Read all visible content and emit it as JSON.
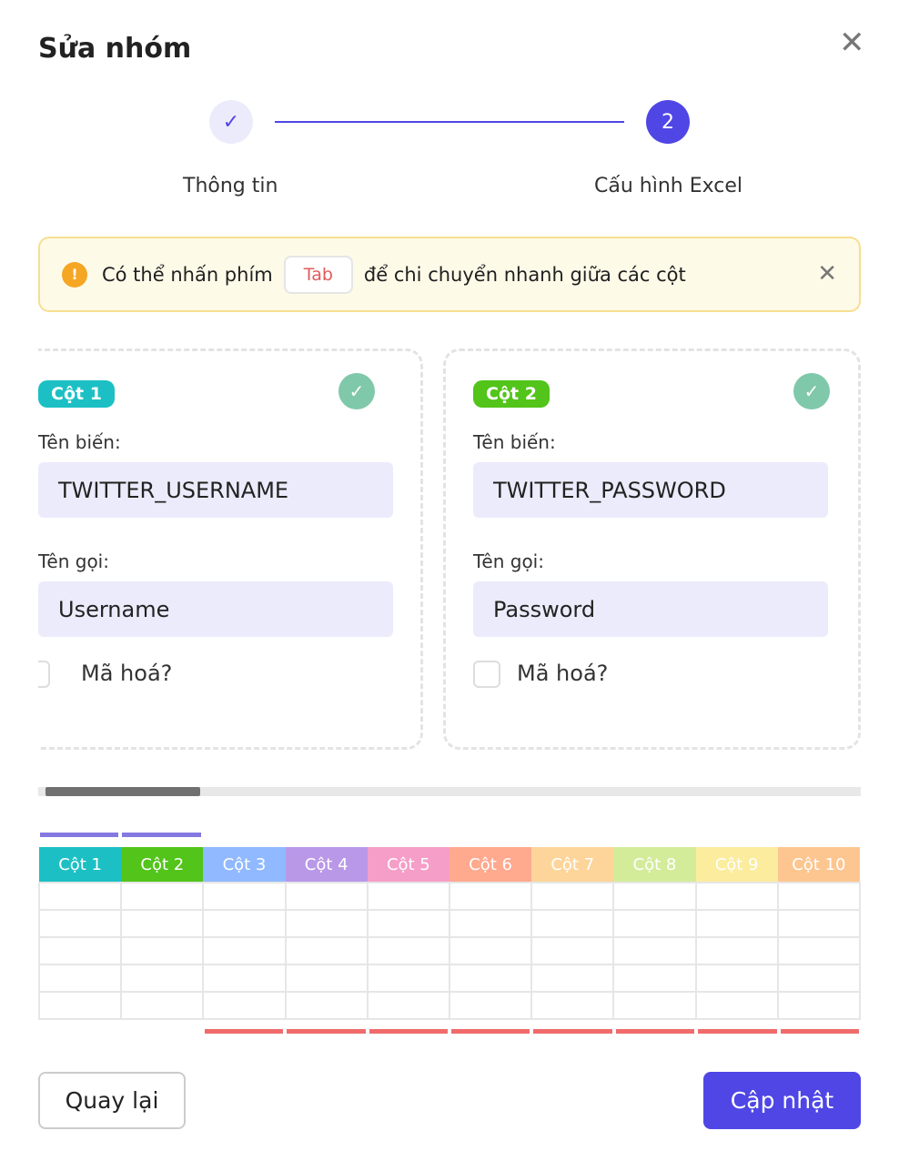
{
  "dialog": {
    "title": "Sửa nhóm",
    "close_icon": "close-icon"
  },
  "stepper": {
    "steps": [
      {
        "label": "Thông tin",
        "marker": "✓",
        "status": "done"
      },
      {
        "label": "Cấu hình Excel",
        "marker": "2",
        "status": "active"
      }
    ]
  },
  "alert": {
    "before": "Có thể nhấn phím",
    "key": "Tab",
    "after": "để chi chuyển nhanh giữa các cột",
    "icon": "warning-icon"
  },
  "cards": [
    {
      "badge": "Cột 1",
      "color": "#1cc0c4",
      "var_label": "Tên biến:",
      "var_value": "TWITTER_USERNAME",
      "name_label": "Tên gọi:",
      "name_value": "Username",
      "encrypt_label": "Mã hoá?",
      "encrypt": false,
      "valid": true
    },
    {
      "badge": "Cột 2",
      "color": "#52c41a",
      "var_label": "Tên biến:",
      "var_value": "TWITTER_PASSWORD",
      "name_label": "Tên gọi:",
      "name_value": "Password",
      "encrypt_label": "Mã hoá?",
      "encrypt": false,
      "valid": true
    }
  ],
  "scrollbar": {
    "position_fraction": 0.0,
    "visible_fraction": 0.19
  },
  "table": {
    "columns": [
      "Cột 1",
      "Cột 2",
      "Cột 3",
      "Cột 4",
      "Cột 5",
      "Cột 6",
      "Cột 7",
      "Cột 8",
      "Cột 9",
      "Cột 10"
    ],
    "colors": [
      "#1cc0c4",
      "#52c41a",
      "#91b9ff",
      "#b998e8",
      "#f59ec8",
      "#ffa98f",
      "#fdd59a",
      "#d3ec9a",
      "#fbec9e",
      "#fdc690"
    ],
    "configured_marker_color": "#8479e1",
    "unconfigured_marker_color": "#f06b6b",
    "configured": [
      true,
      true,
      false,
      false,
      false,
      false,
      false,
      false,
      false,
      false
    ],
    "row_count": 5
  },
  "footer": {
    "back": "Quay lại",
    "update": "Cập nhật"
  }
}
